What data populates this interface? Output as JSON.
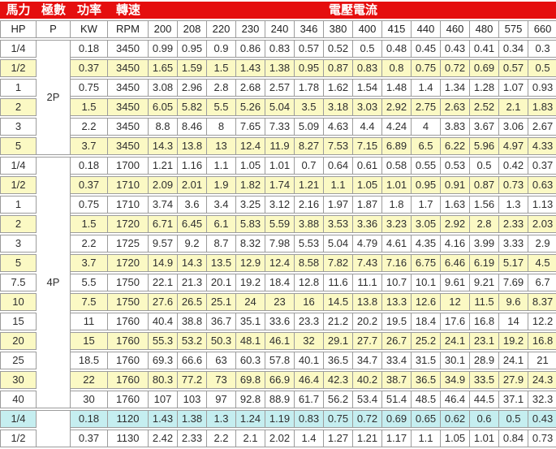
{
  "title_row": {
    "hp": "馬力",
    "poles": "極數",
    "power": "功率",
    "speed": "轉速",
    "voltage_current": "電壓電流"
  },
  "columns": [
    "HP",
    "P",
    "KW",
    "RPM",
    "200",
    "208",
    "220",
    "230",
    "240",
    "346",
    "380",
    "400",
    "415",
    "440",
    "460",
    "480",
    "575",
    "660"
  ],
  "colors": {
    "header_bg": "#e50e0e",
    "header_text": "#ffffff",
    "yellow": "#fbf9c4",
    "cyan": "#c5eef0",
    "white": "#ffffff",
    "border": "#9c9c9c"
  },
  "sections": [
    {
      "pole_label": "2P",
      "rows": [
        {
          "hp": "1/4",
          "kw": "0.18",
          "rpm": "3450",
          "bg": "white",
          "currents": [
            "0.99",
            "0.95",
            "0.9",
            "0.86",
            "0.83",
            "0.57",
            "0.52",
            "0.5",
            "0.48",
            "0.45",
            "0.43",
            "0.41",
            "0.34",
            "0.3"
          ]
        },
        {
          "hp": "1/2",
          "kw": "0.37",
          "rpm": "3450",
          "bg": "yellow",
          "currents": [
            "1.65",
            "1.59",
            "1.5",
            "1.43",
            "1.38",
            "0.95",
            "0.87",
            "0.83",
            "0.8",
            "0.75",
            "0.72",
            "0.69",
            "0.57",
            "0.5"
          ]
        },
        {
          "hp": "1",
          "kw": "0.75",
          "rpm": "3450",
          "bg": "white",
          "currents": [
            "3.08",
            "2.96",
            "2.8",
            "2.68",
            "2.57",
            "1.78",
            "1.62",
            "1.54",
            "1.48",
            "1.4",
            "1.34",
            "1.28",
            "1.07",
            "0.93"
          ]
        },
        {
          "hp": "2",
          "kw": "1.5",
          "rpm": "3450",
          "bg": "yellow",
          "currents": [
            "6.05",
            "5.82",
            "5.5",
            "5.26",
            "5.04",
            "3.5",
            "3.18",
            "3.03",
            "2.92",
            "2.75",
            "2.63",
            "2.52",
            "2.1",
            "1.83"
          ]
        },
        {
          "hp": "3",
          "kw": "2.2",
          "rpm": "3450",
          "bg": "white",
          "currents": [
            "8.8",
            "8.46",
            "8",
            "7.65",
            "7.33",
            "5.09",
            "4.63",
            "4.4",
            "4.24",
            "4",
            "3.83",
            "3.67",
            "3.06",
            "2.67"
          ]
        },
        {
          "hp": "5",
          "kw": "3.7",
          "rpm": "3450",
          "bg": "yellow",
          "currents": [
            "14.3",
            "13.8",
            "13",
            "12.4",
            "11.9",
            "8.27",
            "7.53",
            "7.15",
            "6.89",
            "6.5",
            "6.22",
            "5.96",
            "4.97",
            "4.33"
          ]
        }
      ]
    },
    {
      "pole_label": "4P",
      "rows": [
        {
          "hp": "1/4",
          "kw": "0.18",
          "rpm": "1700",
          "bg": "white",
          "currents": [
            "1.21",
            "1.16",
            "1.1",
            "1.05",
            "1.01",
            "0.7",
            "0.64",
            "0.61",
            "0.58",
            "0.55",
            "0.53",
            "0.5",
            "0.42",
            "0.37"
          ]
        },
        {
          "hp": "1/2",
          "kw": "0.37",
          "rpm": "1710",
          "bg": "yellow",
          "currents": [
            "2.09",
            "2.01",
            "1.9",
            "1.82",
            "1.74",
            "1.21",
            "1.1",
            "1.05",
            "1.01",
            "0.95",
            "0.91",
            "0.87",
            "0.73",
            "0.63"
          ]
        },
        {
          "hp": "1",
          "kw": "0.75",
          "rpm": "1710",
          "bg": "white",
          "currents": [
            "3.74",
            "3.6",
            "3.4",
            "3.25",
            "3.12",
            "2.16",
            "1.97",
            "1.87",
            "1.8",
            "1.7",
            "1.63",
            "1.56",
            "1.3",
            "1.13"
          ]
        },
        {
          "hp": "2",
          "kw": "1.5",
          "rpm": "1720",
          "bg": "yellow",
          "currents": [
            "6.71",
            "6.45",
            "6.1",
            "5.83",
            "5.59",
            "3.88",
            "3.53",
            "3.36",
            "3.23",
            "3.05",
            "2.92",
            "2.8",
            "2.33",
            "2.03"
          ]
        },
        {
          "hp": "3",
          "kw": "2.2",
          "rpm": "1725",
          "bg": "white",
          "currents": [
            "9.57",
            "9.2",
            "8.7",
            "8.32",
            "7.98",
            "5.53",
            "5.04",
            "4.79",
            "4.61",
            "4.35",
            "4.16",
            "3.99",
            "3.33",
            "2.9"
          ]
        },
        {
          "hp": "5",
          "kw": "3.7",
          "rpm": "1720",
          "bg": "yellow",
          "currents": [
            "14.9",
            "14.3",
            "13.5",
            "12.9",
            "12.4",
            "8.58",
            "7.82",
            "7.43",
            "7.16",
            "6.75",
            "6.46",
            "6.19",
            "5.17",
            "4.5"
          ]
        },
        {
          "hp": "7.5",
          "kw": "5.5",
          "rpm": "1750",
          "bg": "white",
          "currents": [
            "22.1",
            "21.3",
            "20.1",
            "19.2",
            "18.4",
            "12.8",
            "11.6",
            "11.1",
            "10.7",
            "10.1",
            "9.61",
            "9.21",
            "7.69",
            "6.7"
          ]
        },
        {
          "hp": "10",
          "kw": "7.5",
          "rpm": "1750",
          "bg": "yellow",
          "currents": [
            "27.6",
            "26.5",
            "25.1",
            "24",
            "23",
            "16",
            "14.5",
            "13.8",
            "13.3",
            "12.6",
            "12",
            "11.5",
            "9.6",
            "8.37"
          ]
        },
        {
          "hp": "15",
          "kw": "11",
          "rpm": "1760",
          "bg": "white",
          "currents": [
            "40.4",
            "38.8",
            "36.7",
            "35.1",
            "33.6",
            "23.3",
            "21.2",
            "20.2",
            "19.5",
            "18.4",
            "17.6",
            "16.8",
            "14",
            "12.2"
          ]
        },
        {
          "hp": "20",
          "kw": "15",
          "rpm": "1760",
          "bg": "yellow",
          "currents": [
            "55.3",
            "53.2",
            "50.3",
            "48.1",
            "46.1",
            "32",
            "29.1",
            "27.7",
            "26.7",
            "25.2",
            "24.1",
            "23.1",
            "19.2",
            "16.8"
          ]
        },
        {
          "hp": "25",
          "kw": "18.5",
          "rpm": "1760",
          "bg": "white",
          "currents": [
            "69.3",
            "66.6",
            "63",
            "60.3",
            "57.8",
            "40.1",
            "36.5",
            "34.7",
            "33.4",
            "31.5",
            "30.1",
            "28.9",
            "24.1",
            "21"
          ]
        },
        {
          "hp": "30",
          "kw": "22",
          "rpm": "1760",
          "bg": "yellow",
          "currents": [
            "80.3",
            "77.2",
            "73",
            "69.8",
            "66.9",
            "46.4",
            "42.3",
            "40.2",
            "38.7",
            "36.5",
            "34.9",
            "33.5",
            "27.9",
            "24.3"
          ]
        },
        {
          "hp": "40",
          "kw": "30",
          "rpm": "1760",
          "bg": "white",
          "currents": [
            "107",
            "103",
            "97",
            "92.8",
            "88.9",
            "61.7",
            "56.2",
            "53.4",
            "51.4",
            "48.5",
            "46.4",
            "44.5",
            "37.1",
            "32.3"
          ]
        }
      ]
    },
    {
      "pole_label": "",
      "rows": [
        {
          "hp": "1/4",
          "kw": "0.18",
          "rpm": "1120",
          "bg": "cyan",
          "currents": [
            "1.43",
            "1.38",
            "1.3",
            "1.24",
            "1.19",
            "0.83",
            "0.75",
            "0.72",
            "0.69",
            "0.65",
            "0.62",
            "0.6",
            "0.5",
            "0.43"
          ]
        },
        {
          "hp": "1/2",
          "kw": "0.37",
          "rpm": "1130",
          "bg": "white",
          "currents": [
            "2.42",
            "2.33",
            "2.2",
            "2.1",
            "2.02",
            "1.4",
            "1.27",
            "1.21",
            "1.17",
            "1.1",
            "1.05",
            "1.01",
            "0.84",
            "0.73"
          ]
        }
      ]
    }
  ]
}
